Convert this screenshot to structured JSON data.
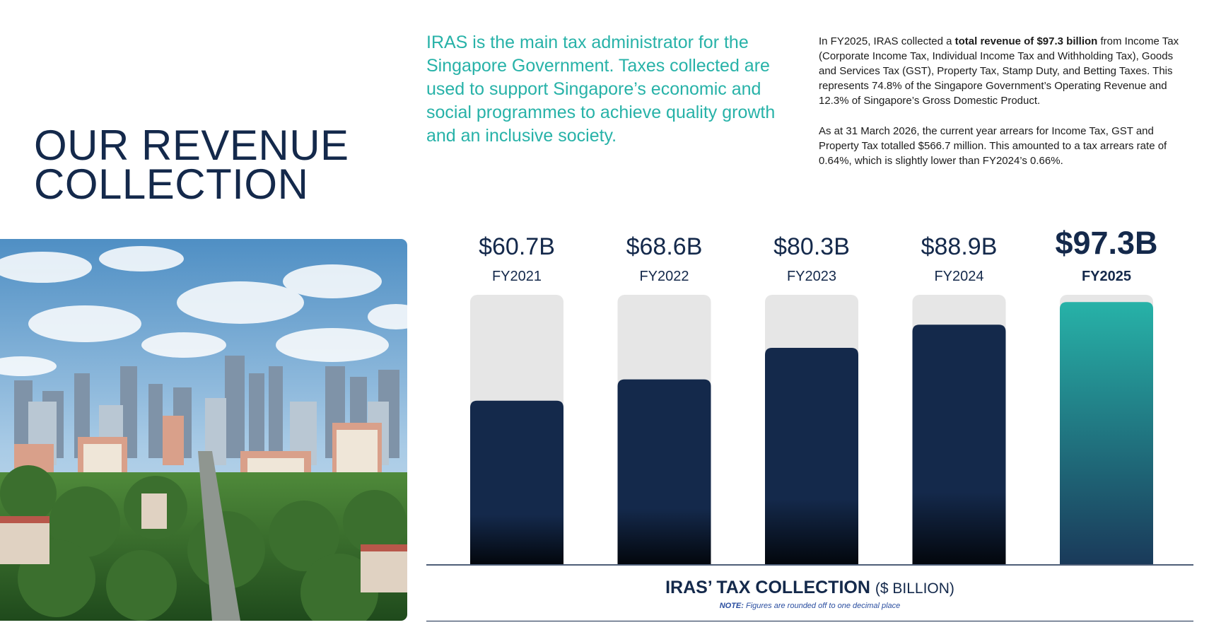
{
  "page": {
    "title_line1": "OUR REVENUE",
    "title_line2": "COLLECTION",
    "intro": "IRAS is the main tax administrator for the Singapore Government. Taxes collected are used to support Singapore’s economic and social programmes to achieve quality growth and an inclusive society."
  },
  "summary": {
    "p1_before": "In FY2025, IRAS collected a ",
    "p1_bold": "total revenue of $97.3 billion",
    "p1_after": " from Income Tax (Corporate Income Tax, Individual Income Tax and Withholding Tax), Goods and Services Tax (GST), Property Tax, Stamp Duty, and Betting Taxes. This represents 74.8% of the Singapore Government’s Operating Revenue and 12.3% of Singapore’s Gross Domestic Product.",
    "p2": "As at 31 March 2026, the current year arrears for Income Tax, GST and Property Tax totalled $566.7 million. This amounted to a tax arrears rate of 0.64%, which is slightly lower than FY2024’s 0.66%."
  },
  "photo": {
    "subject": "aerial-city-skyline"
  },
  "chart_data": {
    "type": "bar",
    "title": "IRAS’ TAX COLLECTION",
    "unit": "($ BILLION)",
    "note_label": "NOTE:",
    "note_text": "Figures are rounded off to one decimal place",
    "categories": [
      "FY2021",
      "FY2022",
      "FY2023",
      "FY2024",
      "FY2025"
    ],
    "values": [
      60.7,
      68.6,
      80.3,
      88.9,
      97.3
    ],
    "value_labels": [
      "$60.7B",
      "$68.6B",
      "$80.3B",
      "$88.9B",
      "$97.3B"
    ],
    "highlight_index": 4,
    "ylim": [
      0,
      100
    ],
    "grid": false,
    "colors": {
      "bar": "#14294b",
      "bar_bottom": "#03070d",
      "highlight": "#27b2a8",
      "highlight_bottom": "#1a3a5a",
      "track": "#e6e6e6",
      "axis": "#14294b"
    }
  }
}
